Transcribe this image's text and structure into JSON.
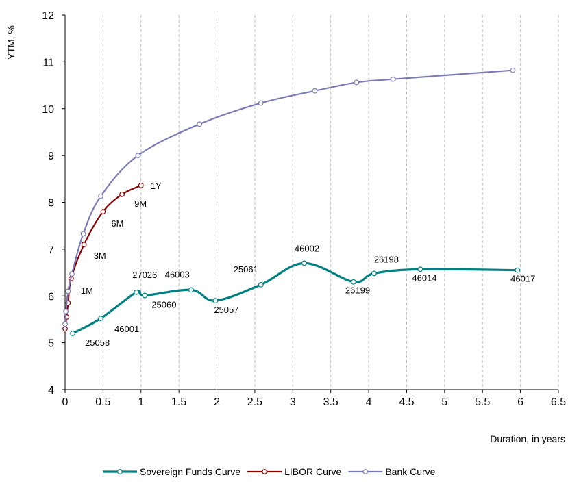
{
  "chart_data": {
    "type": "line",
    "title": "",
    "xlabel": "Duration, in years",
    "ylabel": "YTM, %",
    "xlim": [
      0,
      6.5
    ],
    "ylim": [
      4,
      12
    ],
    "x_ticks": [
      "0",
      "0.5",
      "1",
      "1.5",
      "2",
      "2.5",
      "3",
      "3.5",
      "4",
      "4.5",
      "5",
      "5.5",
      "6",
      "6.5"
    ],
    "y_ticks": [
      "4",
      "5",
      "6",
      "7",
      "8",
      "9",
      "10",
      "11",
      "12"
    ],
    "grid": "vertical dashed",
    "legend_position": "bottom",
    "series": [
      {
        "name": "Sovereign Funds Curve",
        "color": "#008080",
        "points": [
          {
            "x": 0.1,
            "y": 5.2,
            "label": "25058"
          },
          {
            "x": 0.47,
            "y": 5.52,
            "label": "46001"
          },
          {
            "x": 0.94,
            "y": 6.08,
            "label": "27026"
          },
          {
            "x": 1.05,
            "y": 6.01,
            "label": "25060"
          },
          {
            "x": 1.66,
            "y": 6.13,
            "label": "46003"
          },
          {
            "x": 1.98,
            "y": 5.9,
            "label": "25057"
          },
          {
            "x": 2.58,
            "y": 6.24,
            "label": "25061"
          },
          {
            "x": 3.15,
            "y": 6.7,
            "label": "46002"
          },
          {
            "x": 3.8,
            "y": 6.3,
            "label": "26199"
          },
          {
            "x": 4.07,
            "y": 6.48,
            "label": "26198"
          },
          {
            "x": 4.68,
            "y": 6.57,
            "label": "46014"
          },
          {
            "x": 5.96,
            "y": 6.55,
            "label": "46017"
          }
        ]
      },
      {
        "name": "LIBOR Curve",
        "color": "#8b0000",
        "points": [
          {
            "x": 0.0,
            "y": 5.3,
            "label": ""
          },
          {
            "x": 0.02,
            "y": 5.55,
            "label": ""
          },
          {
            "x": 0.04,
            "y": 5.85,
            "label": ""
          },
          {
            "x": 0.08,
            "y": 6.37,
            "label": "1M"
          },
          {
            "x": 0.25,
            "y": 7.1,
            "label": "3M"
          },
          {
            "x": 0.5,
            "y": 7.8,
            "label": "6M"
          },
          {
            "x": 0.75,
            "y": 8.17,
            "label": "9M"
          },
          {
            "x": 1.0,
            "y": 8.36,
            "label": "1Y"
          }
        ]
      },
      {
        "name": "Bank Curve",
        "color": "#7b7bb6",
        "points": [
          {
            "x": 0.0,
            "y": 5.4
          },
          {
            "x": 0.01,
            "y": 5.67
          },
          {
            "x": 0.04,
            "y": 6.1
          },
          {
            "x": 0.09,
            "y": 6.47
          },
          {
            "x": 0.24,
            "y": 7.33
          },
          {
            "x": 0.47,
            "y": 8.13
          },
          {
            "x": 0.96,
            "y": 9.0
          },
          {
            "x": 1.77,
            "y": 9.67
          },
          {
            "x": 2.58,
            "y": 10.12
          },
          {
            "x": 3.29,
            "y": 10.38
          },
          {
            "x": 3.84,
            "y": 10.56
          },
          {
            "x": 4.32,
            "y": 10.63
          },
          {
            "x": 5.9,
            "y": 10.82
          }
        ]
      }
    ]
  }
}
